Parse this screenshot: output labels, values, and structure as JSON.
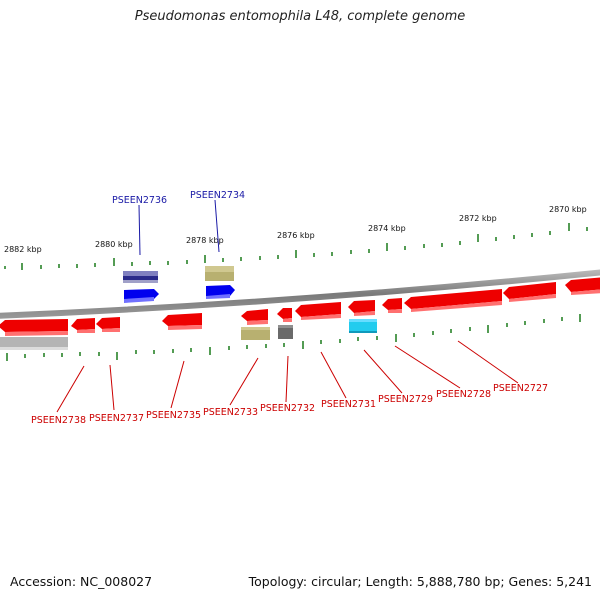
{
  "title": "Pseudomonas entomophila L48, complete genome",
  "footer": {
    "accession": "Accession: NC_008027",
    "stats": "Topology: circular; Length: 5,888,780 bp; Genes: 5,241"
  },
  "scale_labels": [
    {
      "text": "2882 kbp"
    },
    {
      "text": "2880 kbp"
    },
    {
      "text": "2878 kbp"
    },
    {
      "text": "2876 kbp"
    },
    {
      "text": "2874 kbp"
    },
    {
      "text": "2872 kbp"
    },
    {
      "text": "2870 kbp"
    }
  ],
  "top_labels": [
    {
      "text": "PSEEN2736",
      "color": "#1a1aa6"
    },
    {
      "text": "PSEEN2734",
      "color": "#1a1aa6"
    }
  ],
  "bottom_labels": [
    {
      "text": "PSEEN2738",
      "color": "#cc0000"
    },
    {
      "text": "PSEEN2737",
      "color": "#cc0000"
    },
    {
      "text": "PSEEN2735",
      "color": "#cc0000"
    },
    {
      "text": "PSEEN2733",
      "color": "#cc0000"
    },
    {
      "text": "PSEEN2732",
      "color": "#cc0000"
    },
    {
      "text": "PSEEN2731",
      "color": "#cc0000"
    },
    {
      "text": "PSEEN2729",
      "color": "#cc0000"
    },
    {
      "text": "PSEEN2728",
      "color": "#cc0000"
    },
    {
      "text": "PSEEN2727",
      "color": "#cc0000"
    }
  ],
  "colors": {
    "forward_gene": "#0000ee",
    "reverse_gene": "#ee0000",
    "backbone": "#8a8a8a",
    "tick": "#1b7a1b",
    "khaki": "#b8b070",
    "navy": "#2a2a8a",
    "grey": "#6a6a6a",
    "cyan": "#22ccee"
  }
}
